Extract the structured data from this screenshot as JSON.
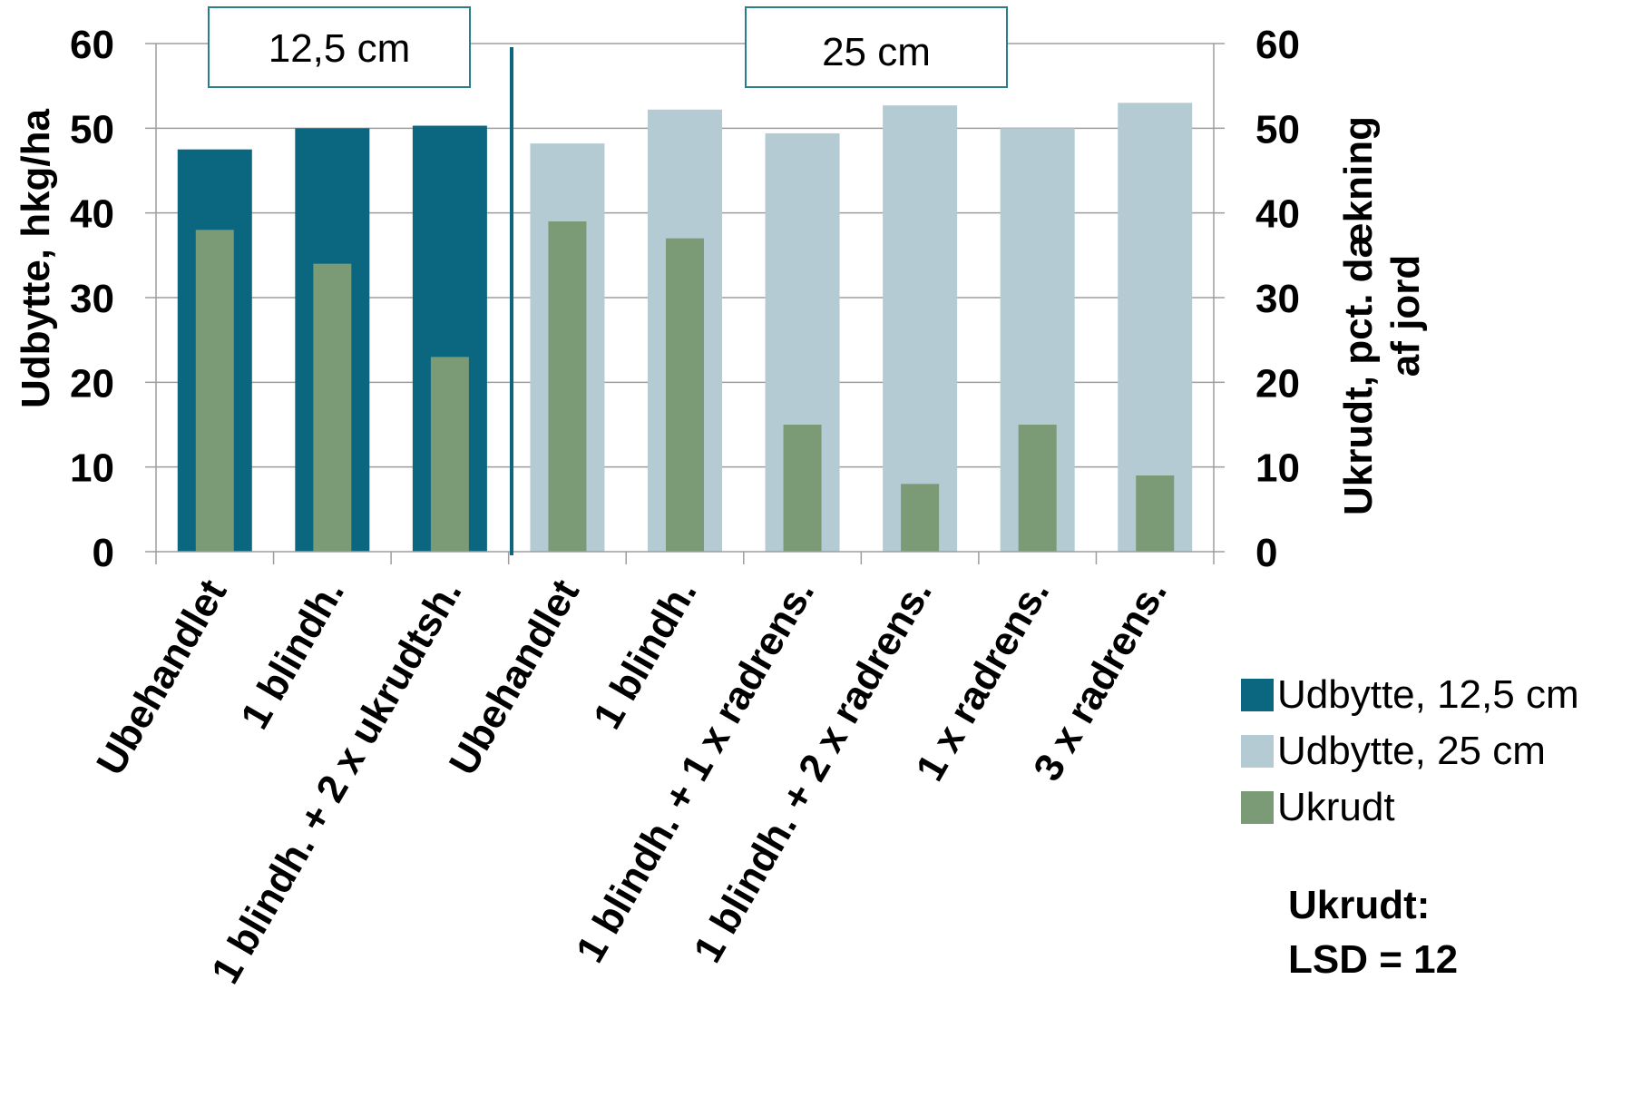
{
  "chart_data": {
    "type": "bar",
    "categories": [
      "Ubehandlet",
      "1 blindh.",
      "1 blindh. + 2 x ukrudtsh.",
      "Ubehandlet",
      "1 blindh.",
      "1 blindh. + 1 x radrens.",
      "1 blindh. + 2 x radrens.",
      "1 x radrens.",
      "3 x radrens."
    ],
    "series": [
      {
        "name": "Udbytte, 12,5 cm",
        "axis": "left",
        "color": "#0b6680",
        "values": [
          47.5,
          50,
          50.3,
          null,
          null,
          null,
          null,
          null,
          null
        ]
      },
      {
        "name": "Udbytte, 25 cm",
        "axis": "left",
        "color": "#b4cbd4",
        "values": [
          null,
          null,
          null,
          48.2,
          52.2,
          49.4,
          52.7,
          50,
          53
        ]
      },
      {
        "name": "Ukrudt",
        "axis": "right",
        "color": "#7b9a76",
        "values": [
          38,
          34,
          23,
          39,
          37,
          15,
          8,
          15,
          9
        ]
      }
    ],
    "ylabel": "Udbytte, hkg/ha",
    "y2label": "Ukrudt, pct. dækning af jord",
    "y2label_lines": [
      "Ukrudt, pct. dækning",
      "af jord"
    ],
    "ylim": [
      0,
      60
    ],
    "y2lim": [
      0,
      60
    ],
    "yticks": [
      "0",
      "10",
      "20",
      "30",
      "40",
      "50",
      "60"
    ],
    "group_labels": [
      "12,5 cm",
      "25 cm"
    ],
    "legend_position": "right",
    "annotation": {
      "line1": "Ukrudt:",
      "line2": "LSD = 12"
    },
    "grid": true,
    "divider_color": "#0b6680"
  }
}
